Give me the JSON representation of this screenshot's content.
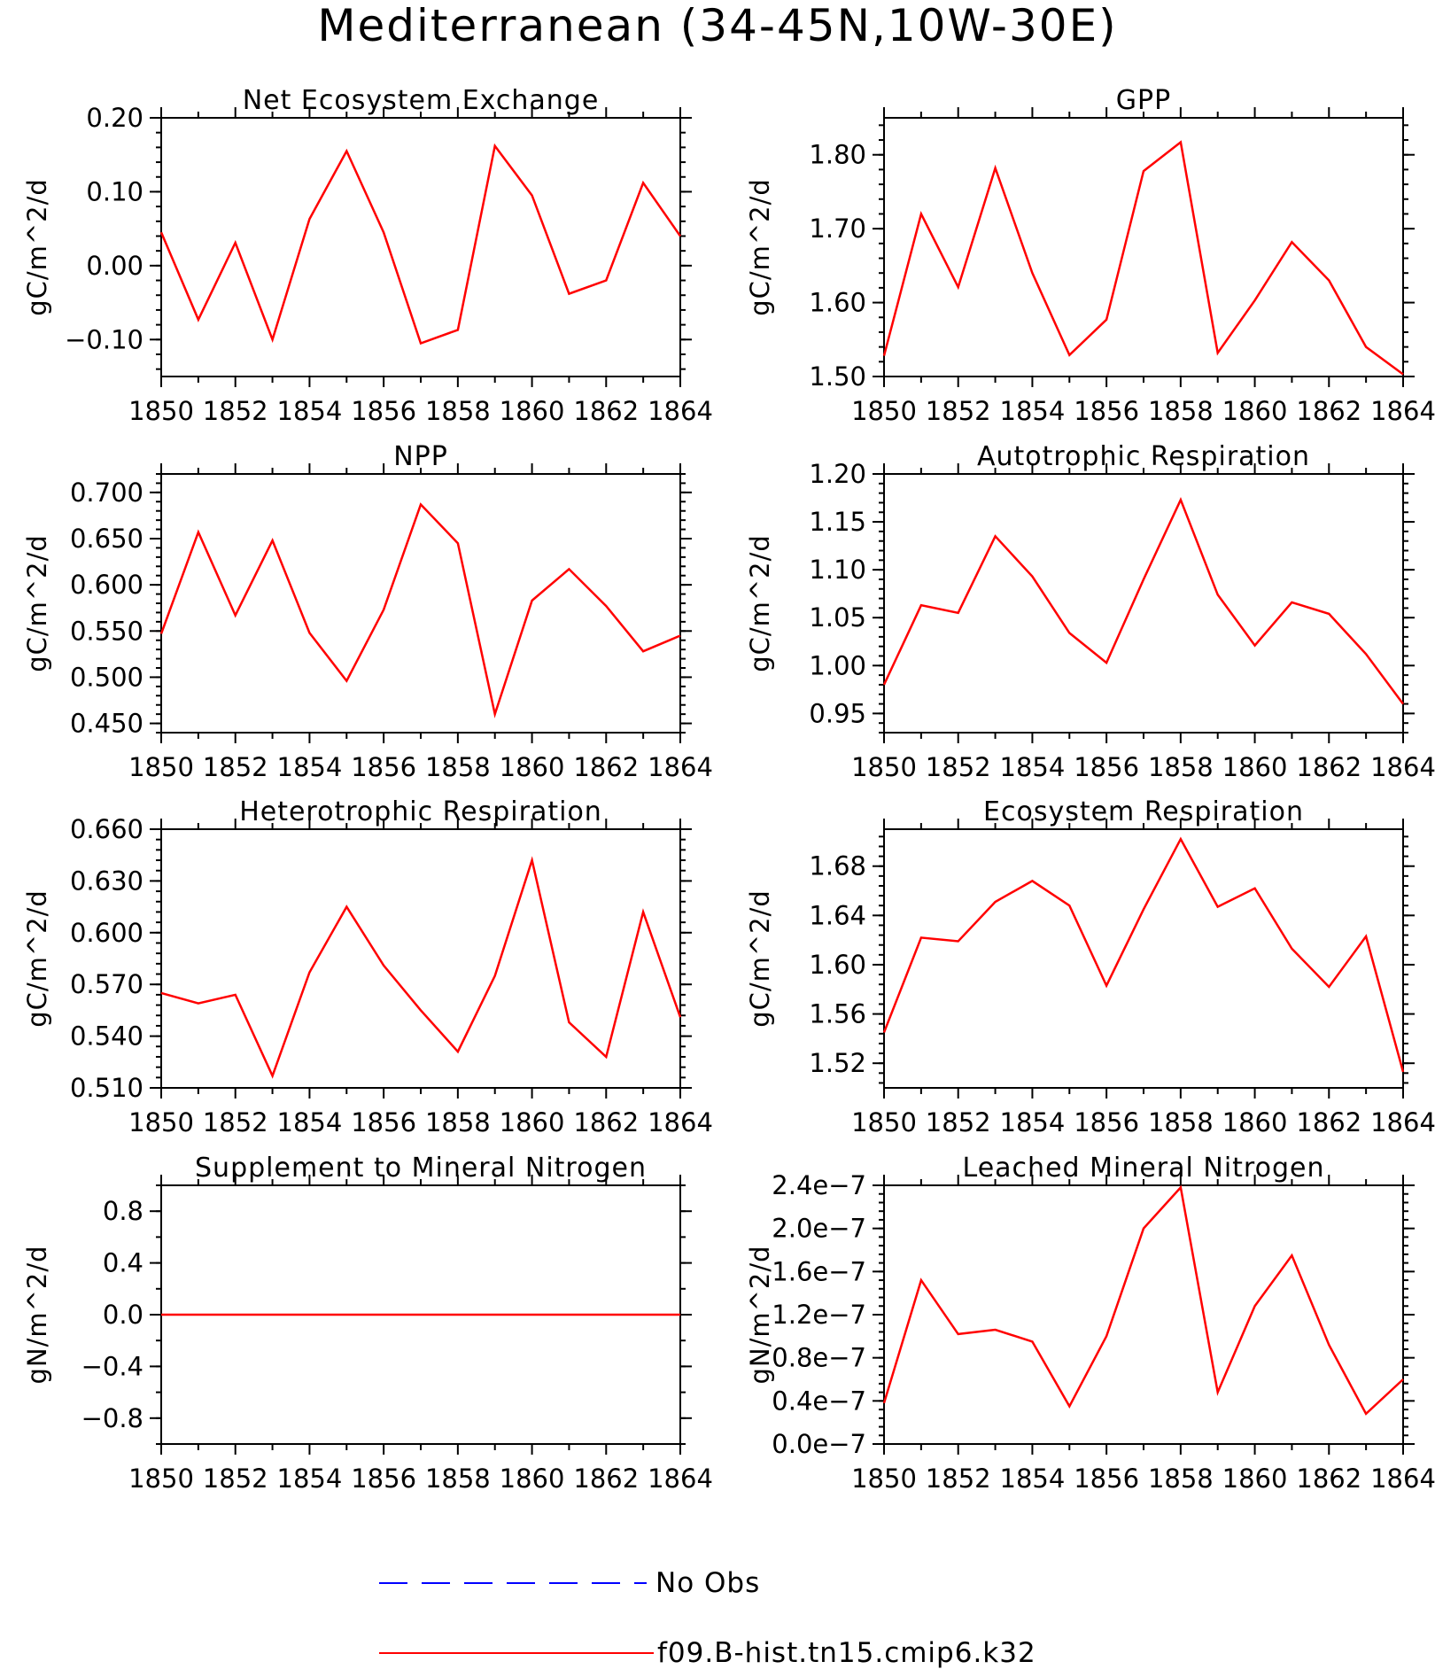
{
  "title": "Mediterranean (34-45N,10W-30E)",
  "legend": [
    {
      "label": "No Obs",
      "color": "#0000ff",
      "style": "dashed"
    },
    {
      "label": "f09.B-hist.tn15.cmip6.k32",
      "color": "#ff0000",
      "style": "solid"
    }
  ],
  "chart_data": [
    {
      "type": "line",
      "title": "Net Ecosystem Exchange",
      "ylabel": "gC/m^2/d",
      "xlim": [
        1850,
        1864
      ],
      "ylim": [
        -0.15,
        0.2
      ],
      "xticks": [
        1850,
        1852,
        1854,
        1856,
        1858,
        1860,
        1862,
        1864
      ],
      "xtick_labels": [
        "1850",
        "1852",
        "1854",
        "1856",
        "1858",
        "1860",
        "1862",
        "1864"
      ],
      "yticks": [
        -0.1,
        0.0,
        0.1,
        0.2
      ],
      "ytick_labels": [
        "−0.10",
        "0.00",
        "0.10",
        "0.20"
      ],
      "x": [
        1850,
        1851,
        1852,
        1853,
        1854,
        1855,
        1856,
        1857,
        1858,
        1859,
        1860,
        1861,
        1862,
        1863,
        1864
      ],
      "series": [
        {
          "name": "f09.B-hist.tn15.cmip6.k32",
          "color": "#ff0000",
          "values": [
            0.045,
            -0.073,
            0.031,
            -0.1,
            0.063,
            0.155,
            0.045,
            -0.105,
            -0.087,
            0.162,
            0.095,
            -0.038,
            -0.02,
            0.112,
            0.04
          ]
        }
      ]
    },
    {
      "type": "line",
      "title": "GPP",
      "ylabel": "gC/m^2/d",
      "xlim": [
        1850,
        1864
      ],
      "ylim": [
        1.5,
        1.85
      ],
      "xticks": [
        1850,
        1852,
        1854,
        1856,
        1858,
        1860,
        1862,
        1864
      ],
      "xtick_labels": [
        "1850",
        "1852",
        "1854",
        "1856",
        "1858",
        "1860",
        "1862",
        "1864"
      ],
      "yticks": [
        1.5,
        1.6,
        1.7,
        1.8
      ],
      "ytick_labels": [
        "1.50",
        "1.60",
        "1.70",
        "1.80"
      ],
      "x": [
        1850,
        1851,
        1852,
        1853,
        1854,
        1855,
        1856,
        1857,
        1858,
        1859,
        1860,
        1861,
        1862,
        1863,
        1864
      ],
      "series": [
        {
          "name": "f09.B-hist.tn15.cmip6.k32",
          "color": "#ff0000",
          "values": [
            1.528,
            1.72,
            1.621,
            1.782,
            1.64,
            1.529,
            1.577,
            1.778,
            1.817,
            1.532,
            1.603,
            1.682,
            1.63,
            1.54,
            1.503
          ]
        }
      ]
    },
    {
      "type": "line",
      "title": "NPP",
      "ylabel": "gC/m^2/d",
      "xlim": [
        1850,
        1864
      ],
      "ylim": [
        0.44,
        0.72
      ],
      "xticks": [
        1850,
        1852,
        1854,
        1856,
        1858,
        1860,
        1862,
        1864
      ],
      "xtick_labels": [
        "1850",
        "1852",
        "1854",
        "1856",
        "1858",
        "1860",
        "1862",
        "1864"
      ],
      "yticks": [
        0.45,
        0.5,
        0.55,
        0.6,
        0.65,
        0.7
      ],
      "ytick_labels": [
        "0.450",
        "0.500",
        "0.550",
        "0.600",
        "0.650",
        "0.700"
      ],
      "x": [
        1850,
        1851,
        1852,
        1853,
        1854,
        1855,
        1856,
        1857,
        1858,
        1859,
        1860,
        1861,
        1862,
        1863,
        1864
      ],
      "series": [
        {
          "name": "f09.B-hist.tn15.cmip6.k32",
          "color": "#ff0000",
          "values": [
            0.547,
            0.657,
            0.567,
            0.648,
            0.548,
            0.496,
            0.573,
            0.687,
            0.645,
            0.46,
            0.583,
            0.617,
            0.577,
            0.528,
            0.545
          ]
        }
      ]
    },
    {
      "type": "line",
      "title": "Autotrophic Respiration",
      "ylabel": "gC/m^2/d",
      "xlim": [
        1850,
        1864
      ],
      "ylim": [
        0.93,
        1.2
      ],
      "xticks": [
        1850,
        1852,
        1854,
        1856,
        1858,
        1860,
        1862,
        1864
      ],
      "xtick_labels": [
        "1850",
        "1852",
        "1854",
        "1856",
        "1858",
        "1860",
        "1862",
        "1864"
      ],
      "yticks": [
        0.95,
        1.0,
        1.05,
        1.1,
        1.15,
        1.2
      ],
      "ytick_labels": [
        "0.95",
        "1.00",
        "1.05",
        "1.10",
        "1.15",
        "1.20"
      ],
      "x": [
        1850,
        1851,
        1852,
        1853,
        1854,
        1855,
        1856,
        1857,
        1858,
        1859,
        1860,
        1861,
        1862,
        1863,
        1864
      ],
      "series": [
        {
          "name": "f09.B-hist.tn15.cmip6.k32",
          "color": "#ff0000",
          "values": [
            0.98,
            1.063,
            1.055,
            1.135,
            1.093,
            1.034,
            1.003,
            1.09,
            1.173,
            1.074,
            1.021,
            1.066,
            1.054,
            1.012,
            0.96
          ]
        }
      ]
    },
    {
      "type": "line",
      "title": "Heterotrophic Respiration",
      "ylabel": "gC/m^2/d",
      "xlim": [
        1850,
        1864
      ],
      "ylim": [
        0.51,
        0.66
      ],
      "xticks": [
        1850,
        1852,
        1854,
        1856,
        1858,
        1860,
        1862,
        1864
      ],
      "xtick_labels": [
        "1850",
        "1852",
        "1854",
        "1856",
        "1858",
        "1860",
        "1862",
        "1864"
      ],
      "yticks": [
        0.51,
        0.54,
        0.57,
        0.6,
        0.63,
        0.66
      ],
      "ytick_labels": [
        "0.510",
        "0.540",
        "0.570",
        "0.600",
        "0.630",
        "0.660"
      ],
      "x": [
        1850,
        1851,
        1852,
        1853,
        1854,
        1855,
        1856,
        1857,
        1858,
        1859,
        1860,
        1861,
        1862,
        1863,
        1864
      ],
      "series": [
        {
          "name": "f09.B-hist.tn15.cmip6.k32",
          "color": "#ff0000",
          "values": [
            0.565,
            0.559,
            0.564,
            0.517,
            0.577,
            0.615,
            0.581,
            0.555,
            0.531,
            0.575,
            0.642,
            0.548,
            0.528,
            0.612,
            0.551
          ]
        }
      ]
    },
    {
      "type": "line",
      "title": "Ecosystem Respiration",
      "ylabel": "gC/m^2/d",
      "xlim": [
        1850,
        1864
      ],
      "ylim": [
        1.5,
        1.71
      ],
      "xticks": [
        1850,
        1852,
        1854,
        1856,
        1858,
        1860,
        1862,
        1864
      ],
      "xtick_labels": [
        "1850",
        "1852",
        "1854",
        "1856",
        "1858",
        "1860",
        "1862",
        "1864"
      ],
      "yticks": [
        1.52,
        1.56,
        1.6,
        1.64,
        1.68
      ],
      "ytick_labels": [
        "1.52",
        "1.56",
        "1.60",
        "1.64",
        "1.68"
      ],
      "x": [
        1850,
        1851,
        1852,
        1853,
        1854,
        1855,
        1856,
        1857,
        1858,
        1859,
        1860,
        1861,
        1862,
        1863,
        1864
      ],
      "series": [
        {
          "name": "f09.B-hist.tn15.cmip6.k32",
          "color": "#ff0000",
          "values": [
            1.545,
            1.622,
            1.619,
            1.651,
            1.668,
            1.648,
            1.583,
            1.645,
            1.702,
            1.647,
            1.662,
            1.613,
            1.582,
            1.623,
            1.513
          ]
        }
      ]
    },
    {
      "type": "line",
      "title": "Supplement to Mineral Nitrogen",
      "ylabel": "gN/m^2/d",
      "xlim": [
        1850,
        1864
      ],
      "ylim": [
        -1.0,
        1.0
      ],
      "xticks": [
        1850,
        1852,
        1854,
        1856,
        1858,
        1860,
        1862,
        1864
      ],
      "xtick_labels": [
        "1850",
        "1852",
        "1854",
        "1856",
        "1858",
        "1860",
        "1862",
        "1864"
      ],
      "yticks": [
        -0.8,
        -0.4,
        0.0,
        0.4,
        0.8
      ],
      "ytick_labels": [
        "−0.8",
        "−0.4",
        "0.0",
        "0.4",
        "0.8"
      ],
      "x": [
        1850,
        1851,
        1852,
        1853,
        1854,
        1855,
        1856,
        1857,
        1858,
        1859,
        1860,
        1861,
        1862,
        1863,
        1864
      ],
      "series": [
        {
          "name": "f09.B-hist.tn15.cmip6.k32",
          "color": "#ff0000",
          "values": [
            0,
            0,
            0,
            0,
            0,
            0,
            0,
            0,
            0,
            0,
            0,
            0,
            0,
            0,
            0
          ]
        }
      ]
    },
    {
      "type": "line",
      "title": "Leached Mineral Nitrogen",
      "ylabel": "gN/m^2/d",
      "xlim": [
        1850,
        1864
      ],
      "ylim": [
        0.0,
        2.4e-07
      ],
      "xticks": [
        1850,
        1852,
        1854,
        1856,
        1858,
        1860,
        1862,
        1864
      ],
      "xtick_labels": [
        "1850",
        "1852",
        "1854",
        "1856",
        "1858",
        "1860",
        "1862",
        "1864"
      ],
      "yticks": [
        0.0,
        4e-08,
        8e-08,
        1.2e-07,
        1.6e-07,
        2e-07,
        2.4e-07
      ],
      "ytick_labels": [
        "0.0e−7",
        "0.4e−7",
        "0.8e−7",
        "1.2e−7",
        "1.6e−7",
        "2.0e−7",
        "2.4e−7"
      ],
      "x": [
        1850,
        1851,
        1852,
        1853,
        1854,
        1855,
        1856,
        1857,
        1858,
        1859,
        1860,
        1861,
        1862,
        1863,
        1864
      ],
      "series": [
        {
          "name": "f09.B-hist.tn15.cmip6.k32",
          "color": "#ff0000",
          "values": [
            3.8e-08,
            1.52e-07,
            1.02e-07,
            1.06e-07,
            9.5e-08,
            3.5e-08,
            1e-07,
            2e-07,
            2.38e-07,
            4.8e-08,
            1.28e-07,
            1.75e-07,
            9.2e-08,
            2.8e-08,
            6e-08
          ]
        }
      ]
    }
  ]
}
